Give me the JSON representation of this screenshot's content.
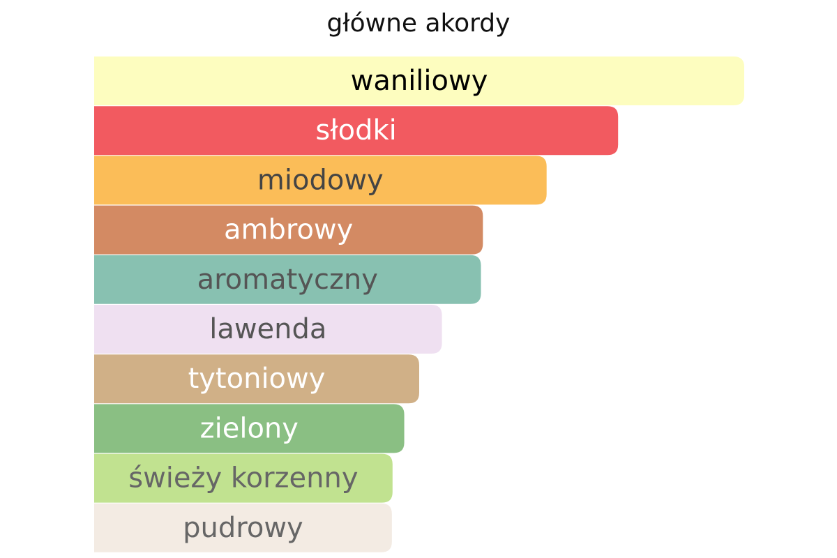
{
  "chart_data": {
    "type": "bar",
    "orientation": "horizontal",
    "title": "główne akordy",
    "categories": [
      "waniliowy",
      "słodki",
      "miodowy",
      "ambrowy",
      "aromatyczny",
      "lawenda",
      "tytoniowy",
      "zielony",
      "świeży korzenny",
      "pudrowy"
    ],
    "values": [
      100,
      80.6,
      69.6,
      59.8,
      59.5,
      53.5,
      50,
      47.7,
      45.9,
      45.8
    ],
    "colors": [
      "#fdfdbf",
      "#f25a60",
      "#fbbd58",
      "#d38a63",
      "#88c1b1",
      "#efe0f1",
      "#d0b087",
      "#8abf83",
      "#c1e290",
      "#f3ebe3"
    ],
    "label_colors": [
      "#000000",
      "#ffffff",
      "#444444",
      "#ffffff",
      "#555555",
      "#555555",
      "#ffffff",
      "#ffffff",
      "#666666",
      "#666666"
    ],
    "xlim": [
      0,
      100
    ]
  }
}
